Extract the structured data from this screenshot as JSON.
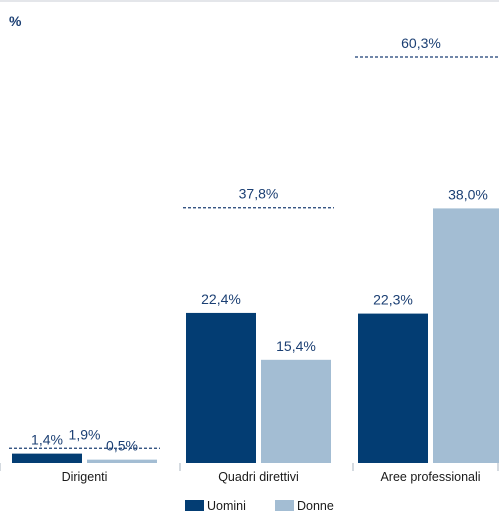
{
  "chart_data": {
    "type": "bar",
    "unit_label": "%",
    "categories": [
      "Dirigenti",
      "Quadri direttivi",
      "Aree professionali"
    ],
    "series": [
      {
        "name": "Uomini",
        "values": [
          1.4,
          22.4,
          22.3
        ],
        "labels": [
          "1,4%",
          "22,4%",
          "22,3%"
        ]
      },
      {
        "name": "Donne",
        "values": [
          0.5,
          15.4,
          38.0
        ],
        "labels": [
          "0,5%",
          "15,4%",
          "38,0%"
        ]
      }
    ],
    "totals": {
      "values": [
        1.9,
        37.8,
        60.3
      ],
      "labels": [
        "1,9%",
        "37,8%",
        "60,3%"
      ]
    },
    "ylim": [
      0,
      60.3
    ],
    "grid": false,
    "legend_position": "bottom"
  },
  "colors": {
    "uomini": "#033d73",
    "donne": "#a3bdd3",
    "text": "#1b3f73",
    "axis": "#aab4c0"
  }
}
